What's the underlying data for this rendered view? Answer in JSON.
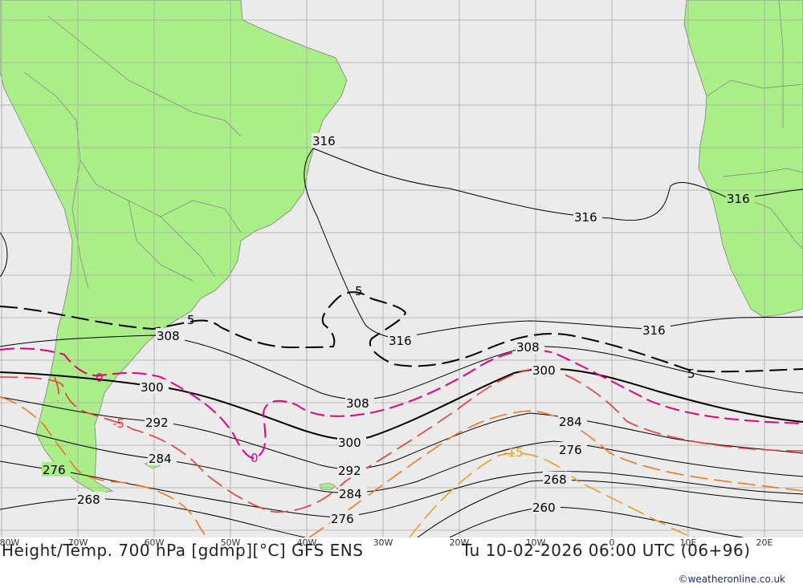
{
  "title": "Height/Temp. 700 hPa [gdmp][°C] GFS ENS",
  "datetime": "Tu 10-02-2026 06:00 UTC (06+96)",
  "credit": "©weatheronline.co.uk",
  "colors": {
    "ocean": "#ebebeb",
    "land": "#aaee88",
    "grid": "#a8a8a8",
    "height_contour": "#000000",
    "temp_0": "#e6007e",
    "temp_neg5": "#e83a3a",
    "temp_neg10": "#ee7722",
    "temp_neg15": "#e8a020"
  },
  "longitude_labels": [
    "80W",
    "70W",
    "60W",
    "50W",
    "40W",
    "30W",
    "20W",
    "10W",
    "0",
    "10E",
    "20E"
  ],
  "height_labels": {
    "316": "316",
    "308": "308",
    "300": "300",
    "292": "292",
    "284": "284",
    "276": "276",
    "268": "268",
    "260": "260"
  },
  "temp_labels": {
    "t5": "5",
    "t0": "0",
    "tneg5": "-5",
    "tneg15": "-15"
  }
}
